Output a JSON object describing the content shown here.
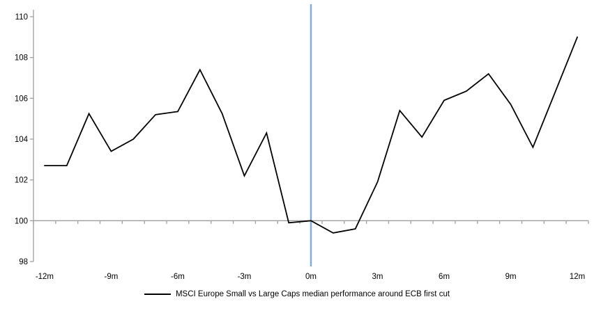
{
  "chart_data": {
    "type": "line",
    "title": "",
    "xlabel": "",
    "ylabel": "",
    "ylim": [
      98,
      110
    ],
    "y_ticks": [
      110,
      108,
      106,
      104,
      102,
      100,
      98
    ],
    "x_ticks": [
      {
        "value": -12,
        "label": "-12m"
      },
      {
        "value": -9,
        "label": "-9m"
      },
      {
        "value": -6,
        "label": "-6m"
      },
      {
        "value": -3,
        "label": "-3m"
      },
      {
        "value": 0,
        "label": "0m"
      },
      {
        "value": 3,
        "label": "3m"
      },
      {
        "value": 6,
        "label": "6m"
      },
      {
        "value": 9,
        "label": "9m"
      },
      {
        "value": 12,
        "label": "12m"
      }
    ],
    "category_axis_at": 100,
    "grid": "off",
    "legend_position": "bottom",
    "axis_color": "#9e9e9e",
    "event_line": {
      "x": 0,
      "color": "#88abd3"
    },
    "series": [
      {
        "name": "MSCI Europe Small vs Large Caps median performance around ECB first cut",
        "color": "#000000",
        "x": [
          -12,
          -11,
          -10,
          -9,
          -8,
          -7,
          -6,
          -5,
          -4,
          -3,
          -2,
          -1,
          0,
          1,
          2,
          3,
          4,
          5,
          6,
          7,
          8,
          9,
          10,
          11,
          12
        ],
        "values": [
          102.7,
          102.7,
          105.25,
          103.4,
          104.0,
          105.2,
          105.35,
          107.4,
          105.25,
          102.2,
          104.3,
          99.9,
          100.0,
          99.4,
          99.6,
          101.9,
          105.4,
          104.1,
          105.9,
          106.35,
          107.2,
          105.7,
          103.6,
          106.3,
          109.0
        ]
      }
    ]
  }
}
